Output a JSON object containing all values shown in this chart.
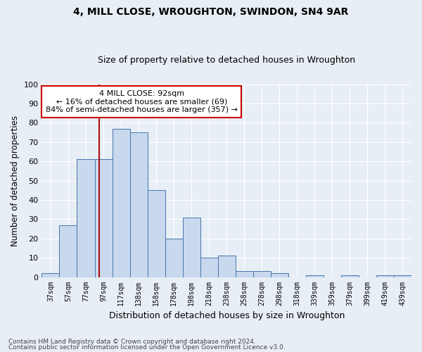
{
  "title1": "4, MILL CLOSE, WROUGHTON, SWINDON, SN4 9AR",
  "title2": "Size of property relative to detached houses in Wroughton",
  "xlabel": "Distribution of detached houses by size in Wroughton",
  "ylabel": "Number of detached properties",
  "bar_labels": [
    "37sqm",
    "57sqm",
    "77sqm",
    "97sqm",
    "117sqm",
    "138sqm",
    "158sqm",
    "178sqm",
    "198sqm",
    "218sqm",
    "238sqm",
    "258sqm",
    "278sqm",
    "298sqm",
    "318sqm",
    "339sqm",
    "359sqm",
    "379sqm",
    "399sqm",
    "419sqm",
    "439sqm"
  ],
  "bar_values": [
    2,
    27,
    61,
    61,
    77,
    75,
    45,
    20,
    31,
    10,
    11,
    3,
    3,
    2,
    0,
    1,
    0,
    1,
    0,
    1,
    1
  ],
  "bar_color": "#c8d8ed",
  "bar_edge_color": "#4477aa",
  "ylim": [
    0,
    100
  ],
  "yticks": [
    0,
    10,
    20,
    30,
    40,
    50,
    60,
    70,
    80,
    90,
    100
  ],
  "vline_color": "#aa1111",
  "annotation_text": "4 MILL CLOSE: 92sqm\n← 16% of detached houses are smaller (69)\n84% of semi-detached houses are larger (357) →",
  "annotation_box_color": "#ffffff",
  "annotation_box_edge": "#cc0000",
  "footer1": "Contains HM Land Registry data © Crown copyright and database right 2024.",
  "footer2": "Contains public sector information licensed under the Open Government Licence v3.0.",
  "bg_color": "#e8eef5",
  "plot_bg_color": "#e8eef5",
  "grid_color": "#ffffff"
}
